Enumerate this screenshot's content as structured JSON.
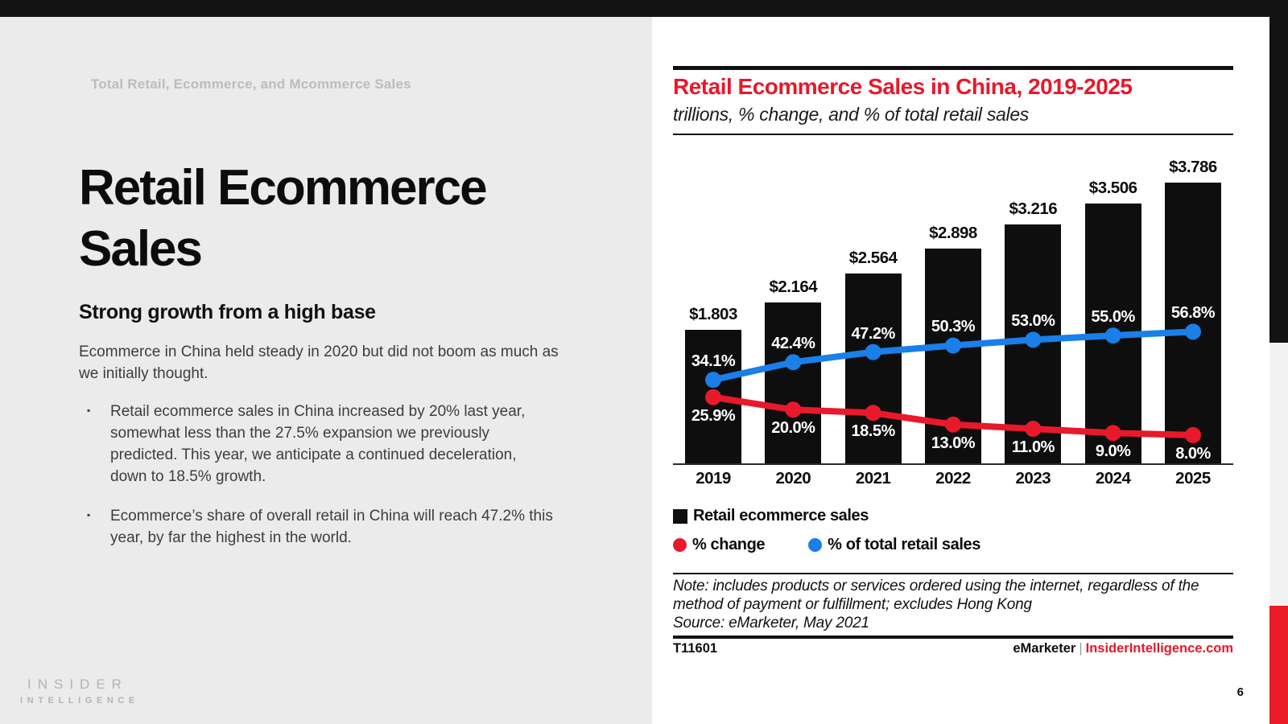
{
  "colors": {
    "frame_black": "#131313",
    "panel_gray": "#ebebeb",
    "strip_gray": "#f2f2f2",
    "strip_red": "#ea1b26",
    "accent_red": "#e8182b",
    "bar_black": "#0e0e0e",
    "line_red": "#e8192b",
    "line_blue": "#1a7fe8"
  },
  "slide": {
    "kicker": "Total Retail, Ecommerce, and Mcommerce Sales",
    "title": "Retail Ecommerce Sales",
    "subheading": "Strong growth from a high base",
    "intro": "Ecommerce in China held steady in 2020 but did not boom as much as we initially thought.",
    "bullets": [
      "Retail ecommerce sales in China increased by 20% last year, somewhat less than the 27.5% expansion we previously predicted. This year, we anticipate a continued deceleration, down to 18.5% growth.",
      "Ecommerce’s share of overall retail in China will reach 47.2% this year, by far the highest in the world."
    ],
    "logo_line1": "INSIDER",
    "logo_line2": "INTELLIGENCE",
    "page_number": "6"
  },
  "chart_card": {
    "title": "Retail Ecommerce Sales in China, 2019-2025",
    "subtitle": "trillions, % change, and % of total retail sales",
    "note": "Note: includes products or services ordered using the internet, regardless of the method of payment or fulfillment; excludes Hong Kong",
    "source": "Source: eMarketer, May 2021",
    "footer_id": "T11601",
    "footer_brand": "eMarketer",
    "footer_sep": "|",
    "footer_site": "InsiderIntelligence.com"
  },
  "chart_data": {
    "type": "bar",
    "title": "Retail Ecommerce Sales in China, 2019-2025",
    "subtitle": "trillions, % change, and % of total retail sales",
    "categories": [
      "2019",
      "2020",
      "2021",
      "2022",
      "2023",
      "2024",
      "2025"
    ],
    "series": [
      {
        "name": "Retail ecommerce sales",
        "type": "bar",
        "unit": "trillions USD",
        "values": [
          1.803,
          2.164,
          2.564,
          2.898,
          3.216,
          3.506,
          3.786
        ],
        "labels": [
          "$1.803",
          "$2.164",
          "$2.564",
          "$2.898",
          "$3.216",
          "$3.506",
          "$3.786"
        ],
        "color": "#0e0e0e"
      },
      {
        "name": "% change",
        "type": "line",
        "unit": "percent",
        "values": [
          25.9,
          20.0,
          18.5,
          13.0,
          11.0,
          9.0,
          8.0
        ],
        "labels": [
          "25.9%",
          "20.0%",
          "18.5%",
          "13.0%",
          "11.0%",
          "9.0%",
          "8.0%"
        ],
        "color": "#e8192b"
      },
      {
        "name": "% of total retail sales",
        "type": "line",
        "unit": "percent",
        "values": [
          34.1,
          42.4,
          47.2,
          50.3,
          53.0,
          55.0,
          56.8
        ],
        "labels": [
          "34.1%",
          "42.4%",
          "47.2%",
          "50.3%",
          "53.0%",
          "55.0%",
          "56.8%"
        ],
        "color": "#1a7fe8"
      }
    ],
    "legend_position": "bottom",
    "grid": false,
    "value_labels_shown": true,
    "bar_axis_baseline": 0
  }
}
